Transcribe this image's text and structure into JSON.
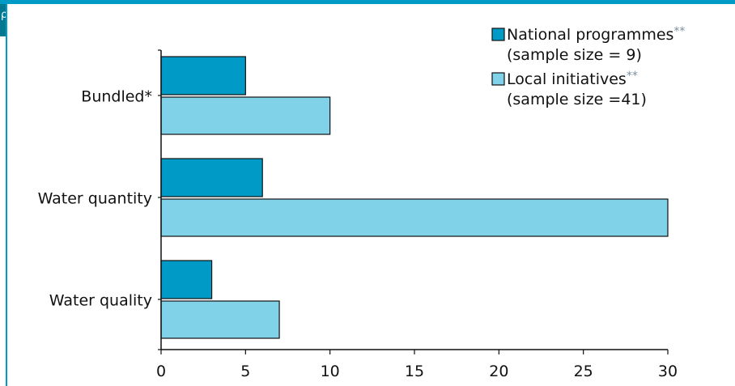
{
  "page": {
    "corner_glyph": "ρ"
  },
  "colors": {
    "frame": "#009ac7",
    "national": "#009ac7",
    "local": "#80d2e8",
    "bar_stroke": "#111111",
    "axis": "#111111",
    "text": "#111111",
    "superscript": "#7a8fa0"
  },
  "chart_data": {
    "type": "bar",
    "orientation": "horizontal",
    "categories": [
      "Bundled*",
      "Water quantity",
      "Water quality"
    ],
    "series": [
      {
        "name": "National programmes",
        "name_suffix": "**",
        "note": "(sample size = 9)",
        "values": [
          5,
          6,
          3
        ]
      },
      {
        "name": "Local initiatives",
        "name_suffix": "**",
        "note": "(sample size =41)",
        "values": [
          10,
          30,
          7
        ]
      }
    ],
    "xlim": [
      0,
      30
    ],
    "xticks": [
      0,
      5,
      10,
      15,
      20,
      25,
      30
    ],
    "title": "",
    "xlabel": "",
    "ylabel": "",
    "grid": false,
    "legend_position": "top-right"
  }
}
